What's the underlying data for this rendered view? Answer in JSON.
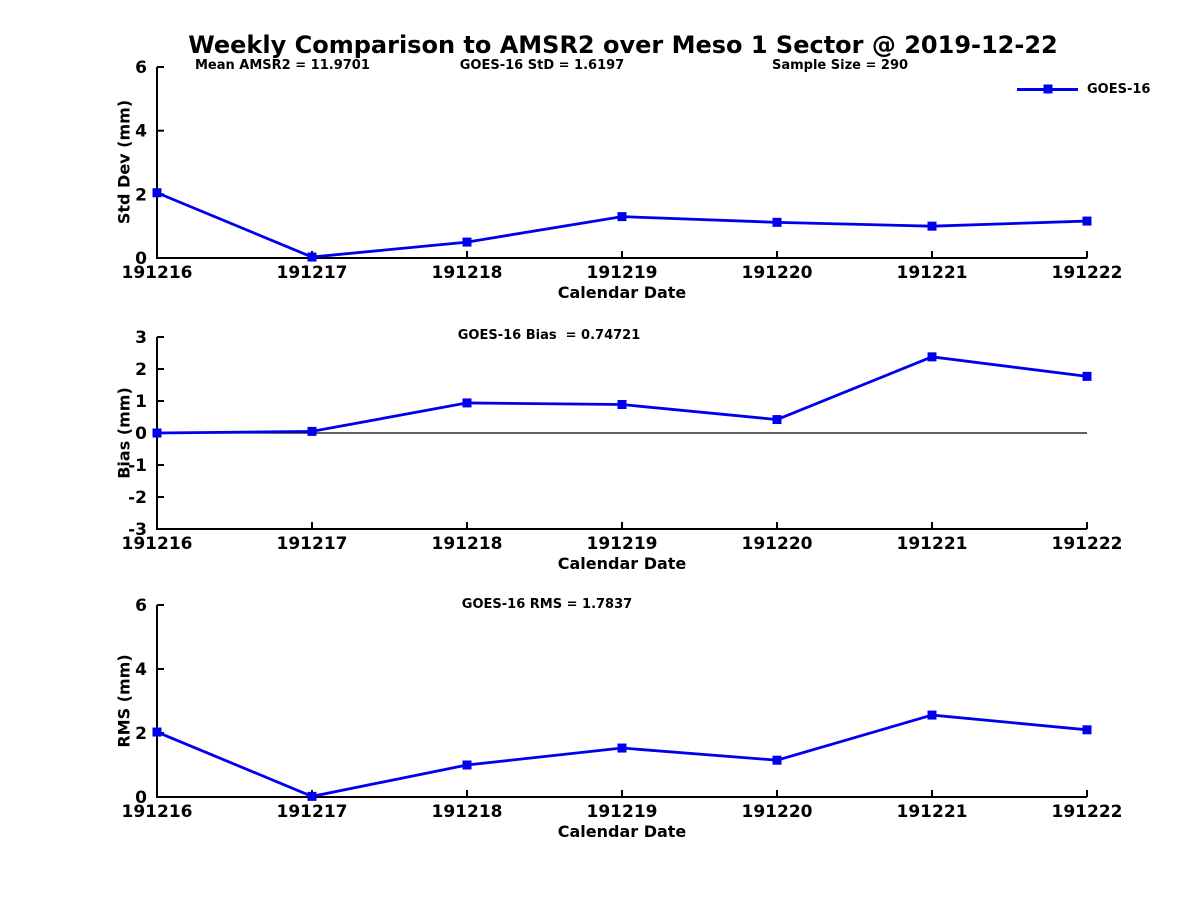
{
  "figure": {
    "title": "Weekly Comparison to AMSR2 over Meso 1 Sector @ 2019-12-22",
    "background_color": "#ffffff",
    "text_color": "#000000",
    "series_color": "#0000ee"
  },
  "annotations": {
    "mean_amsr2": "Mean AMSR2 = 11.9701",
    "goes16_std": "GOES-16 StD = 1.6197",
    "sample_size": "Sample Size = 290"
  },
  "legend": {
    "label": "GOES-16",
    "position": "top-right",
    "marker": "square"
  },
  "chart_data": [
    {
      "type": "line",
      "name": "std-dev-panel",
      "title": "",
      "xlabel": "Calendar Date",
      "ylabel": "Std Dev (mm)",
      "categories": [
        "191216",
        "191217",
        "191218",
        "191219",
        "191220",
        "191221",
        "191222"
      ],
      "series": [
        {
          "name": "GOES-16",
          "color": "#0000ee",
          "marker": "square",
          "values": [
            2.05,
            0.03,
            0.5,
            1.3,
            1.12,
            1.0,
            1.16
          ]
        }
      ],
      "ylim": [
        0,
        6
      ],
      "yticks": [
        0,
        2,
        4,
        6
      ],
      "grid": false,
      "zero_line": false,
      "legend_position": "top-right"
    },
    {
      "type": "line",
      "name": "bias-panel",
      "title": "GOES-16 Bias  = 0.74721",
      "xlabel": "Calendar Date",
      "ylabel": "Bias (mm)",
      "categories": [
        "191216",
        "191217",
        "191218",
        "191219",
        "191220",
        "191221",
        "191222"
      ],
      "series": [
        {
          "name": "GOES-16",
          "color": "#0000ee",
          "marker": "square",
          "values": [
            0.0,
            0.05,
            0.94,
            0.89,
            0.42,
            2.38,
            1.77
          ]
        }
      ],
      "ylim": [
        -3,
        3
      ],
      "yticks": [
        -3,
        -2,
        -1,
        0,
        1,
        2,
        3
      ],
      "grid": false,
      "zero_line": true,
      "legend_position": "none"
    },
    {
      "type": "line",
      "name": "rms-panel",
      "title": "GOES-16 RMS = 1.7837",
      "xlabel": "Calendar Date",
      "ylabel": "RMS (mm)",
      "categories": [
        "191216",
        "191217",
        "191218",
        "191219",
        "191220",
        "191221",
        "191222"
      ],
      "series": [
        {
          "name": "GOES-16",
          "color": "#0000ee",
          "marker": "square",
          "values": [
            2.03,
            0.02,
            1.0,
            1.53,
            1.15,
            2.56,
            2.1
          ]
        }
      ],
      "ylim": [
        0,
        6
      ],
      "yticks": [
        0,
        2,
        4,
        6
      ],
      "grid": false,
      "zero_line": false,
      "legend_position": "none"
    }
  ]
}
